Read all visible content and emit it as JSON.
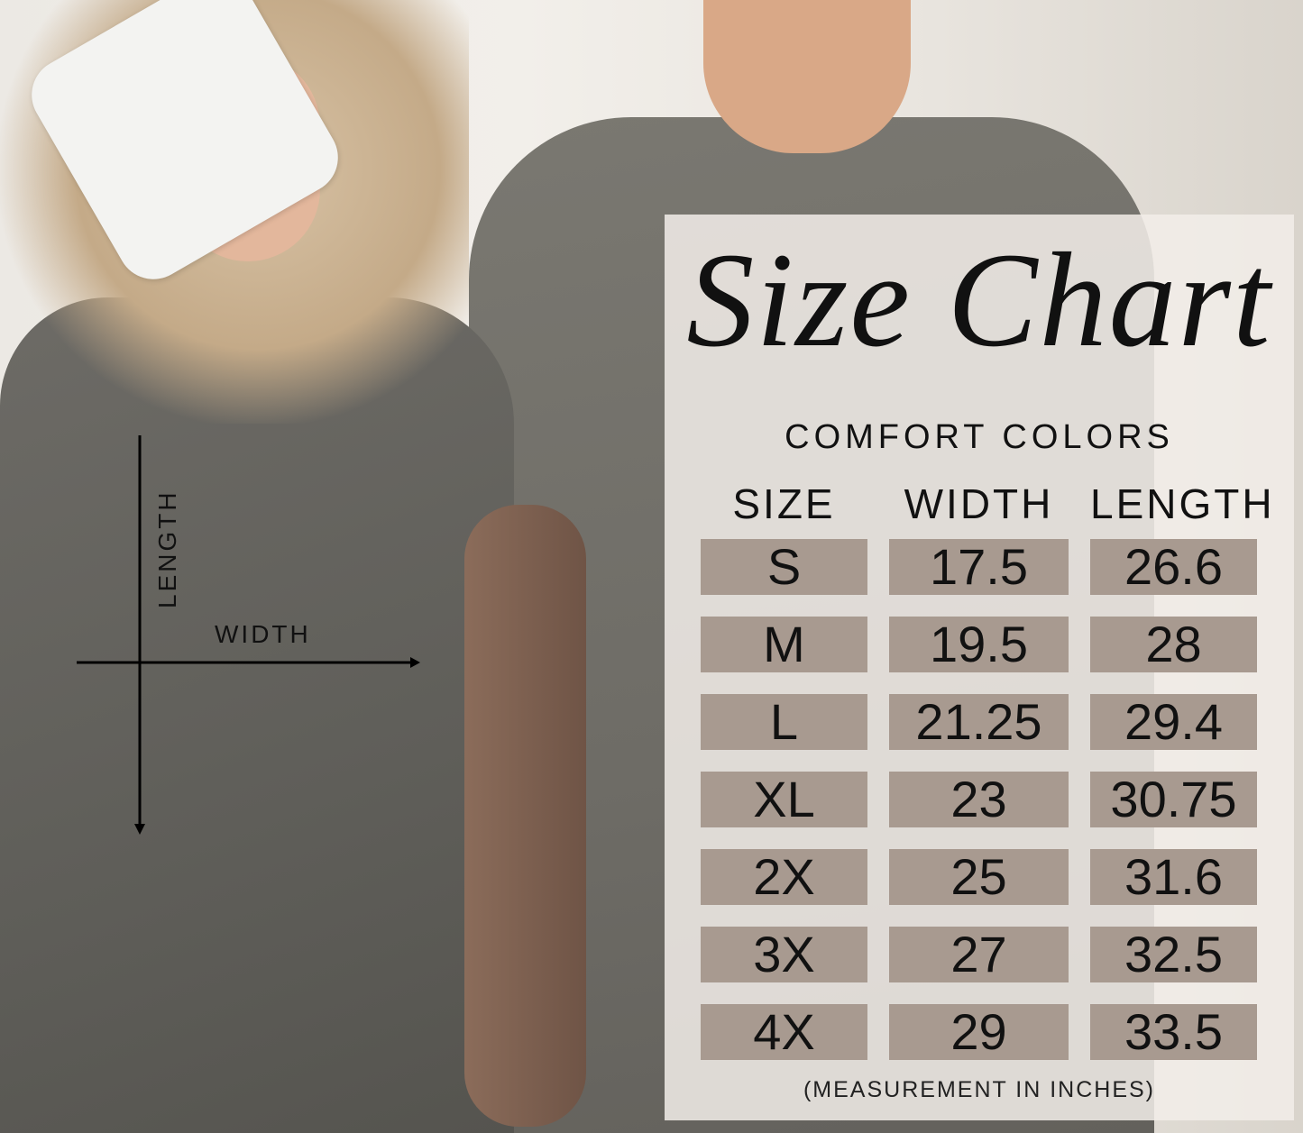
{
  "title": "Size Chart",
  "brand": "COMFORT COLORS",
  "diagram": {
    "length_label": "LENGTH",
    "width_label": "WIDTH"
  },
  "cell_color": "#a89a90",
  "chart_data": {
    "type": "table",
    "columns": [
      "SIZE",
      "WIDTH",
      "LENGTH"
    ],
    "rows": [
      [
        "S",
        "17.5",
        "26.6"
      ],
      [
        "M",
        "19.5",
        "28"
      ],
      [
        "L",
        "21.25",
        "29.4"
      ],
      [
        "XL",
        "23",
        "30.75"
      ],
      [
        "2X",
        "25",
        "31.6"
      ],
      [
        "3X",
        "27",
        "32.5"
      ],
      [
        "4X",
        "29",
        "33.5"
      ]
    ]
  },
  "note": "(MEASUREMENT IN INCHES)"
}
